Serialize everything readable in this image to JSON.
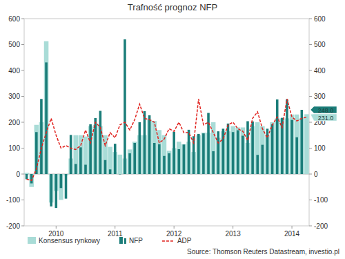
{
  "chart_data": {
    "type": "bar",
    "title": "Trafność prognoz NFP",
    "source": "Source: Thomson Reuters Datastream, investio.pl",
    "categories": [
      null,
      null,
      null,
      null,
      null,
      null,
      "2010",
      null,
      null,
      null,
      null,
      null,
      null,
      null,
      null,
      null,
      null,
      null,
      "2011",
      null,
      null,
      null,
      null,
      null,
      null,
      null,
      null,
      null,
      null,
      null,
      "2012",
      null,
      null,
      null,
      null,
      null,
      null,
      null,
      null,
      null,
      null,
      null,
      "2013",
      null,
      null,
      null,
      null,
      null,
      null,
      null,
      null,
      null,
      null,
      null,
      "2014",
      null,
      null,
      null
    ],
    "series": [
      {
        "name": "Konsensus rynkowy",
        "type": "bar",
        "color": "#a9dcd7",
        "values": [
          5,
          -50,
          190,
          200,
          513,
          -110,
          -65,
          -100,
          -5,
          60,
          150,
          150,
          145,
          185,
          190,
          185,
          150,
          105,
          85,
          75,
          60,
          95,
          125,
          150,
          150,
          210,
          205,
          170,
          150,
          90,
          100,
          125,
          115,
          125,
          85,
          150,
          160,
          160,
          200,
          140,
          165,
          165,
          185,
          180,
          180,
          120,
          185,
          200,
          185,
          150,
          200,
          215,
          215,
          215,
          230,
          230,
          215,
          231
        ]
      },
      {
        "name": "NFP",
        "type": "bar",
        "color": "#1b7d79",
        "values": [
          -20,
          -36,
          162,
          290,
          431,
          -125,
          -131,
          -54,
          -95,
          151,
          39,
          103,
          36,
          192,
          216,
          244,
          54,
          18,
          117,
          0,
          520,
          80,
          120,
          200,
          243,
          227,
          120,
          115,
          70,
          80,
          163,
          96,
          114,
          171,
          146,
          155,
          157,
          236,
          88,
          165,
          175,
          195,
          162,
          169,
          148,
          204,
          203,
          74,
          113,
          175,
          192,
          288,
          217,
          288,
          209,
          142,
          248,
          null
        ]
      },
      {
        "name": "ADP",
        "type": "line",
        "color": "#e0211d",
        "line_style": "dashed",
        "values": [
          -20,
          -25,
          20,
          100,
          160,
          215,
          150,
          100,
          110,
          100,
          95,
          110,
          170,
          120,
          200,
          180,
          110,
          160,
          140,
          190,
          200,
          170,
          210,
          270,
          215,
          210,
          200,
          120,
          135,
          175,
          165,
          200,
          160,
          160,
          120,
          290,
          190,
          200,
          160,
          120,
          135,
          190,
          200,
          175,
          165,
          130,
          215,
          240,
          175,
          140,
          190,
          220,
          180,
          290,
          220,
          205,
          215,
          220
        ]
      }
    ],
    "annotations": [
      {
        "label": "248.0",
        "value": 248,
        "color": "#1b7d79"
      },
      {
        "label": "231.0",
        "value": 231,
        "color": "#a9dcd7"
      }
    ],
    "ylim": [
      -200,
      600
    ],
    "yticks": [
      -200,
      -100,
      0,
      100,
      200,
      300,
      400,
      500,
      600
    ],
    "grid": false,
    "legend": "bottom"
  }
}
